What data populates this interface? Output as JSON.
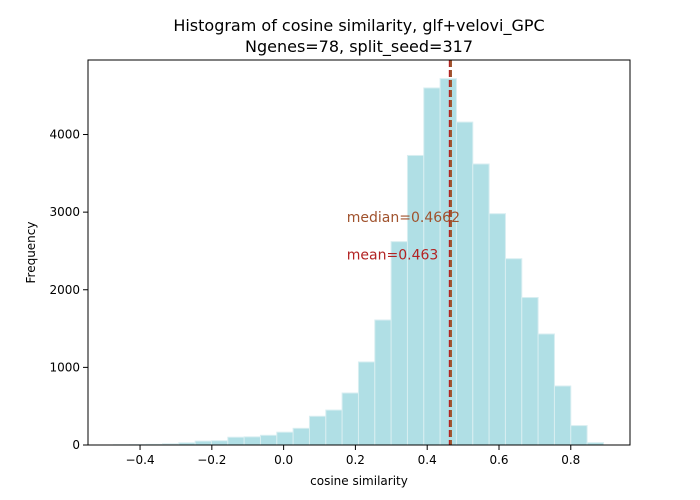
{
  "chart_data": {
    "type": "bar",
    "title_line1": "Histogram of cosine similarity, glf+velovi_GPC",
    "title_line2": "Ngenes=78, split_seed=317",
    "xlabel": "cosine similarity",
    "ylabel": "Frequency",
    "xlim": [
      -0.545,
      0.965
    ],
    "ylim": [
      0,
      4960
    ],
    "xticks": [
      -0.4,
      -0.2,
      0.0,
      0.2,
      0.4,
      0.6,
      0.8
    ],
    "xtick_labels": [
      "−0.4",
      "−0.2",
      "0.0",
      "0.2",
      "0.4",
      "0.6",
      "0.8"
    ],
    "yticks": [
      0,
      1000,
      2000,
      3000,
      4000
    ],
    "ytick_labels": [
      "0",
      "1000",
      "2000",
      "3000",
      "4000"
    ],
    "bin_width": 0.0455,
    "bins": [
      {
        "x0": -0.474,
        "value": 3
      },
      {
        "x0": -0.4285,
        "value": 5
      },
      {
        "x0": -0.383,
        "value": 8
      },
      {
        "x0": -0.3375,
        "value": 15
      },
      {
        "x0": -0.292,
        "value": 28
      },
      {
        "x0": -0.2465,
        "value": 50
      },
      {
        "x0": -0.201,
        "value": 55
      },
      {
        "x0": -0.1555,
        "value": 100
      },
      {
        "x0": -0.11,
        "value": 105
      },
      {
        "x0": -0.0645,
        "value": 125
      },
      {
        "x0": -0.019,
        "value": 165
      },
      {
        "x0": 0.0265,
        "value": 215
      },
      {
        "x0": 0.072,
        "value": 370
      },
      {
        "x0": 0.1175,
        "value": 450
      },
      {
        "x0": 0.163,
        "value": 670
      },
      {
        "x0": 0.2085,
        "value": 1070
      },
      {
        "x0": 0.254,
        "value": 1610
      },
      {
        "x0": 0.2995,
        "value": 2620
      },
      {
        "x0": 0.345,
        "value": 3730
      },
      {
        "x0": 0.3905,
        "value": 4600
      },
      {
        "x0": 0.436,
        "value": 4720
      },
      {
        "x0": 0.4815,
        "value": 4160
      },
      {
        "x0": 0.527,
        "value": 3620
      },
      {
        "x0": 0.5725,
        "value": 2980
      },
      {
        "x0": 0.618,
        "value": 2400
      },
      {
        "x0": 0.6635,
        "value": 1900
      },
      {
        "x0": 0.709,
        "value": 1430
      },
      {
        "x0": 0.7545,
        "value": 760
      },
      {
        "x0": 0.8,
        "value": 250
      },
      {
        "x0": 0.8455,
        "value": 30
      }
    ],
    "bar_color": "#b0dfe5",
    "bar_edge_color": "#d8eef1",
    "median": {
      "value": 0.4662,
      "label": "median=0.4662",
      "color": "#a0522d"
    },
    "mean": {
      "value": 0.463,
      "label": "mean=0.463",
      "color": "#b22222"
    },
    "annotation_x": 0.176,
    "median_label_y": 2870,
    "mean_label_y": 2390,
    "grid": false
  }
}
